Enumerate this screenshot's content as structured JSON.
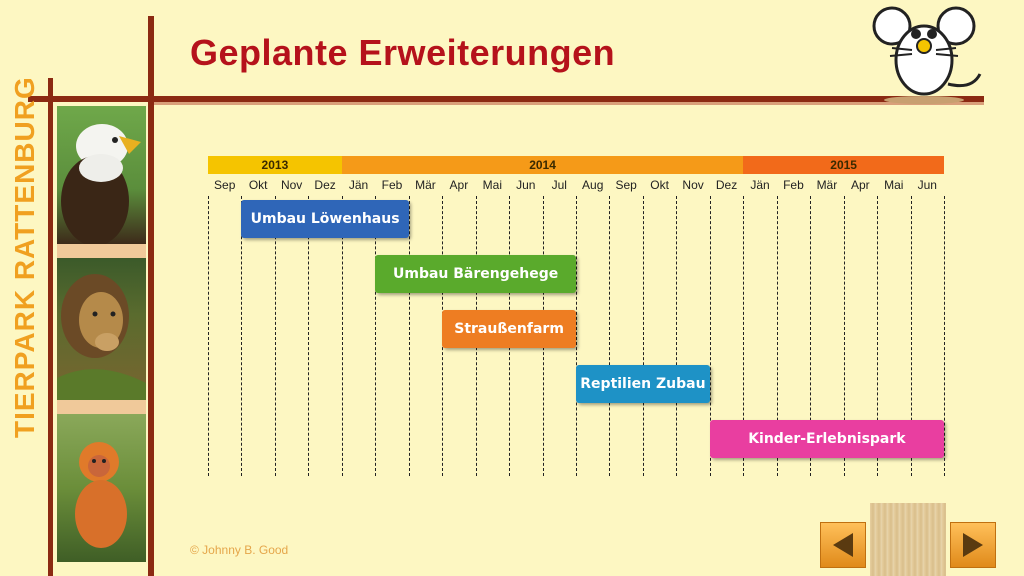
{
  "brand": "TIERPARK RATTENBURG",
  "title": "Geplante Erweiterungen",
  "copyright": "© Johnny B. Good",
  "colors": {
    "frame": "#8b2a12",
    "title": "#b5121b",
    "brand": "#f0a020",
    "y2013": "#f5c400",
    "y2014": "#f59a18",
    "y2015": "#f26a1a"
  },
  "icons": {
    "prev": "left-triangle",
    "next": "right-triangle",
    "mascot": "cartoon-mouse"
  },
  "gantt": {
    "years": [
      {
        "label": "2013",
        "months": 4
      },
      {
        "label": "2014",
        "months": 12
      },
      {
        "label": "2015",
        "months": 6
      }
    ],
    "months": [
      "Sep",
      "Okt",
      "Nov",
      "Dez",
      "Jän",
      "Feb",
      "Mär",
      "Apr",
      "Mai",
      "Jun",
      "Jul",
      "Aug",
      "Sep",
      "Okt",
      "Nov",
      "Dez",
      "Jän",
      "Feb",
      "Mär",
      "Apr",
      "Mai",
      "Jun"
    ],
    "tasks": [
      {
        "label": "Umbau Löwenhaus",
        "start": 1,
        "end": 6,
        "color": "#2f66b8"
      },
      {
        "label": "Umbau Bärengehege",
        "start": 5,
        "end": 11,
        "color": "#5aaa2c"
      },
      {
        "label": "Straußenfarm",
        "start": 7,
        "end": 11,
        "color": "#ee7d22"
      },
      {
        "label": "Reptilien Zubau",
        "start": 11,
        "end": 15,
        "color": "#1e92c6"
      },
      {
        "label": "Kinder-Erlebnispark",
        "start": 15,
        "end": 22,
        "color": "#e93ea0"
      }
    ]
  }
}
